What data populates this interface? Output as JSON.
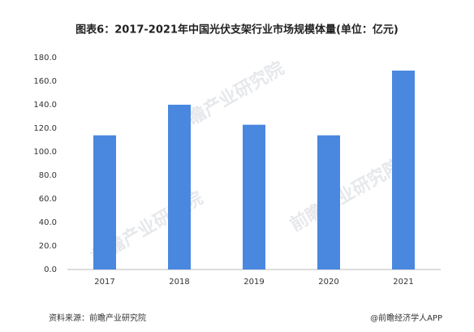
{
  "chart_data": {
    "type": "bar",
    "title": "图表6：2017-2021年中国光伏支架行业市场规模体量(单位：亿元)",
    "categories": [
      "2017",
      "2018",
      "2019",
      "2020",
      "2021"
    ],
    "values": [
      114,
      140,
      123,
      114,
      169
    ],
    "color": "#4a88e0",
    "ylim": [
      0,
      180
    ],
    "yticks": [
      {
        "value": 0,
        "label": "0.0"
      },
      {
        "value": 20,
        "label": "20.0"
      },
      {
        "value": 40,
        "label": "40.0"
      },
      {
        "value": 60,
        "label": "60.0"
      },
      {
        "value": 80,
        "label": "80.0"
      },
      {
        "value": 100,
        "label": "100.0"
      },
      {
        "value": 120,
        "label": "120.0"
      },
      {
        "value": 140,
        "label": "140.0"
      },
      {
        "value": 160,
        "label": "160.0"
      },
      {
        "value": 180,
        "label": "180.0"
      }
    ],
    "grid": false,
    "watermark": "前瞻产业研究院",
    "source": "资料来源：前瞻产业研究院",
    "credit": "@前瞻经济学人APP"
  }
}
